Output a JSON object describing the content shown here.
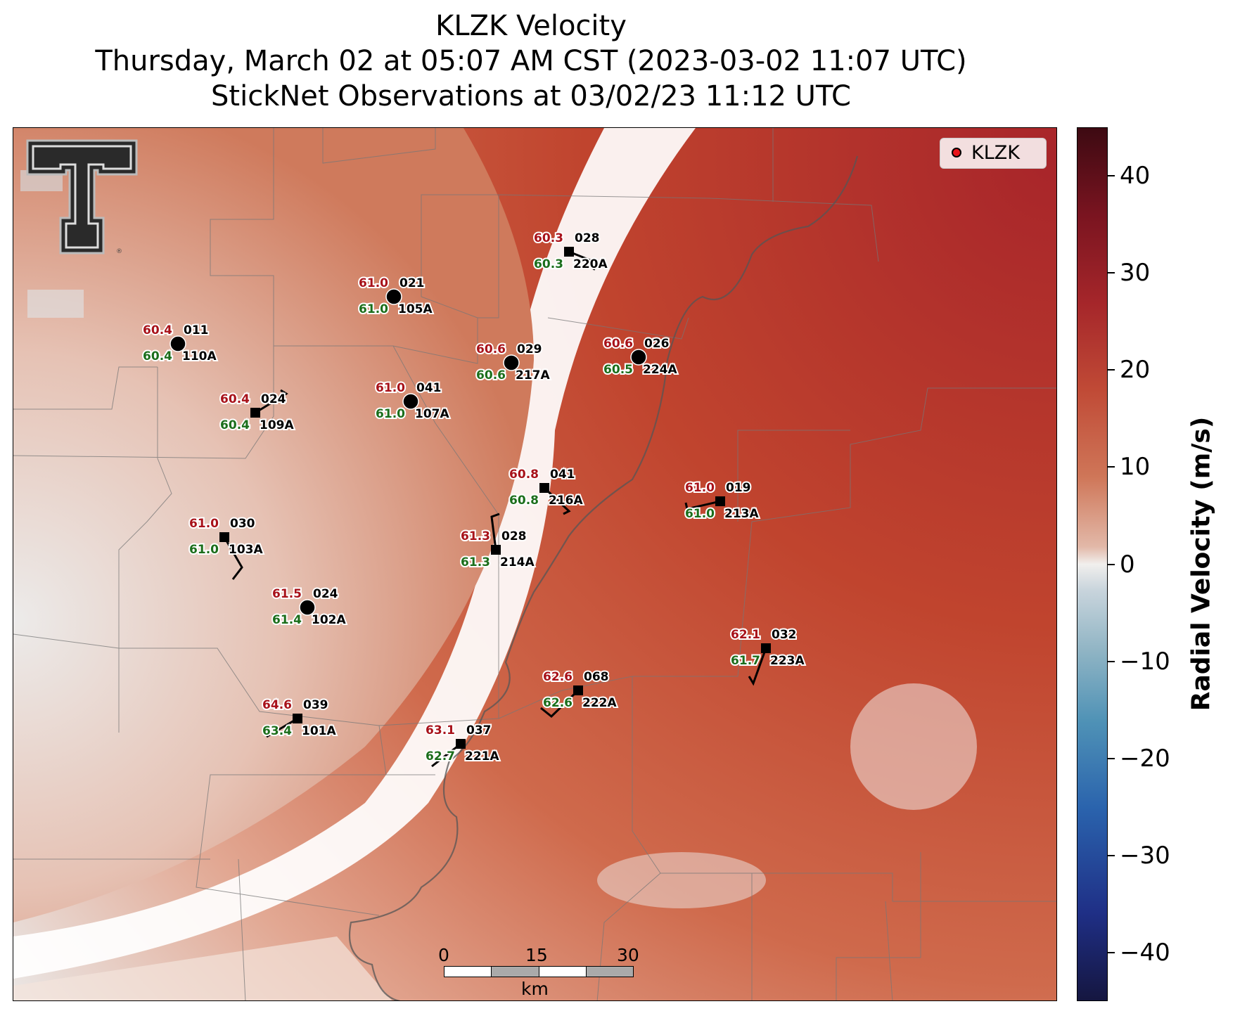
{
  "title": {
    "line1": "KLZK Velocity",
    "line2": "Thursday, March 02 at 05:07 AM CST (2023-03-02 11:07 UTC)",
    "line3": "StickNet Observations at 03/02/23 11:12 UTC"
  },
  "legend": {
    "label": "KLZK",
    "marker_color": "#e8141a"
  },
  "scale_bar": {
    "ticks": [
      "0",
      "15",
      "30"
    ],
    "unit": "km"
  },
  "colorbar": {
    "label": "Radial Velocity (m/s)",
    "ticks": [
      "40",
      "30",
      "20",
      "10",
      "0",
      "−10",
      "−20",
      "−30",
      "−40"
    ],
    "range": [
      -45,
      45
    ]
  },
  "colors": {
    "temp": "#a8121a",
    "dewpoint": "#1b6e1b",
    "id": "#000000"
  },
  "stations": [
    {
      "id": "105A",
      "temp": "61.0",
      "dew": "61.0",
      "dir": "021",
      "marker": "circle"
    },
    {
      "id": "110A",
      "temp": "60.4",
      "dew": "60.4",
      "dir": "011",
      "marker": "circle"
    },
    {
      "id": "109A",
      "temp": "60.4",
      "dew": "60.4",
      "dir": "024",
      "marker": "square"
    },
    {
      "id": "107A",
      "temp": "61.0",
      "dew": "61.0",
      "dir": "041",
      "marker": "circle"
    },
    {
      "id": "217A",
      "temp": "60.6",
      "dew": "60.6",
      "dir": "029",
      "marker": "circle"
    },
    {
      "id": "224A",
      "temp": "60.6",
      "dew": "60.5",
      "dir": "026",
      "marker": "circle"
    },
    {
      "id": "220A",
      "temp": "60.3",
      "dew": "60.3",
      "dir": "028",
      "marker": "square"
    },
    {
      "id": "216A",
      "temp": "60.8",
      "dew": "60.8",
      "dir": "041",
      "marker": "square"
    },
    {
      "id": "213A",
      "temp": "61.0",
      "dew": "61.0",
      "dir": "019",
      "marker": "square"
    },
    {
      "id": "103A",
      "temp": "61.0",
      "dew": "61.0",
      "dir": "030",
      "marker": "square"
    },
    {
      "id": "214A",
      "temp": "61.3",
      "dew": "61.3",
      "dir": "028",
      "marker": "square"
    },
    {
      "id": "102A",
      "temp": "61.5",
      "dew": "61.4",
      "dir": "024",
      "marker": "circle"
    },
    {
      "id": "223A",
      "temp": "62.1",
      "dew": "61.7",
      "dir": "032",
      "marker": "square"
    },
    {
      "id": "222A",
      "temp": "62.6",
      "dew": "62.6",
      "dir": "068",
      "marker": "square"
    },
    {
      "id": "101A",
      "temp": "64.6",
      "dew": "63.4",
      "dir": "039",
      "marker": "square"
    },
    {
      "id": "221A",
      "temp": "63.1",
      "dew": "62.7",
      "dir": "037",
      "marker": "square"
    }
  ]
}
